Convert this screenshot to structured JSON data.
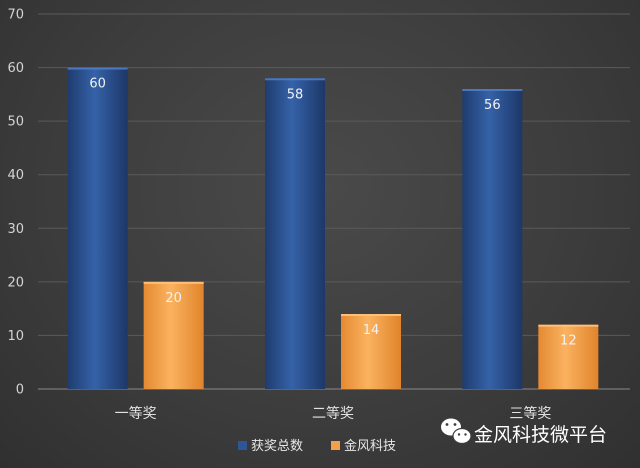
{
  "chart_data": {
    "type": "bar",
    "categories": [
      "一等奖",
      "二等奖",
      "三等奖"
    ],
    "series": [
      {
        "name": "获奖总数",
        "values": [
          60,
          58,
          56
        ],
        "color": "#2e5597"
      },
      {
        "name": "金风科技",
        "values": [
          20,
          14,
          12
        ],
        "color": "#f4a04b"
      }
    ],
    "ylim": [
      0,
      70
    ],
    "yticks": [
      0,
      10,
      20,
      30,
      40,
      50,
      60,
      70
    ],
    "grid": true,
    "legend_position": "bottom-center"
  },
  "watermark": {
    "text": "金风科技微平台",
    "icon": "wechat-icon"
  }
}
